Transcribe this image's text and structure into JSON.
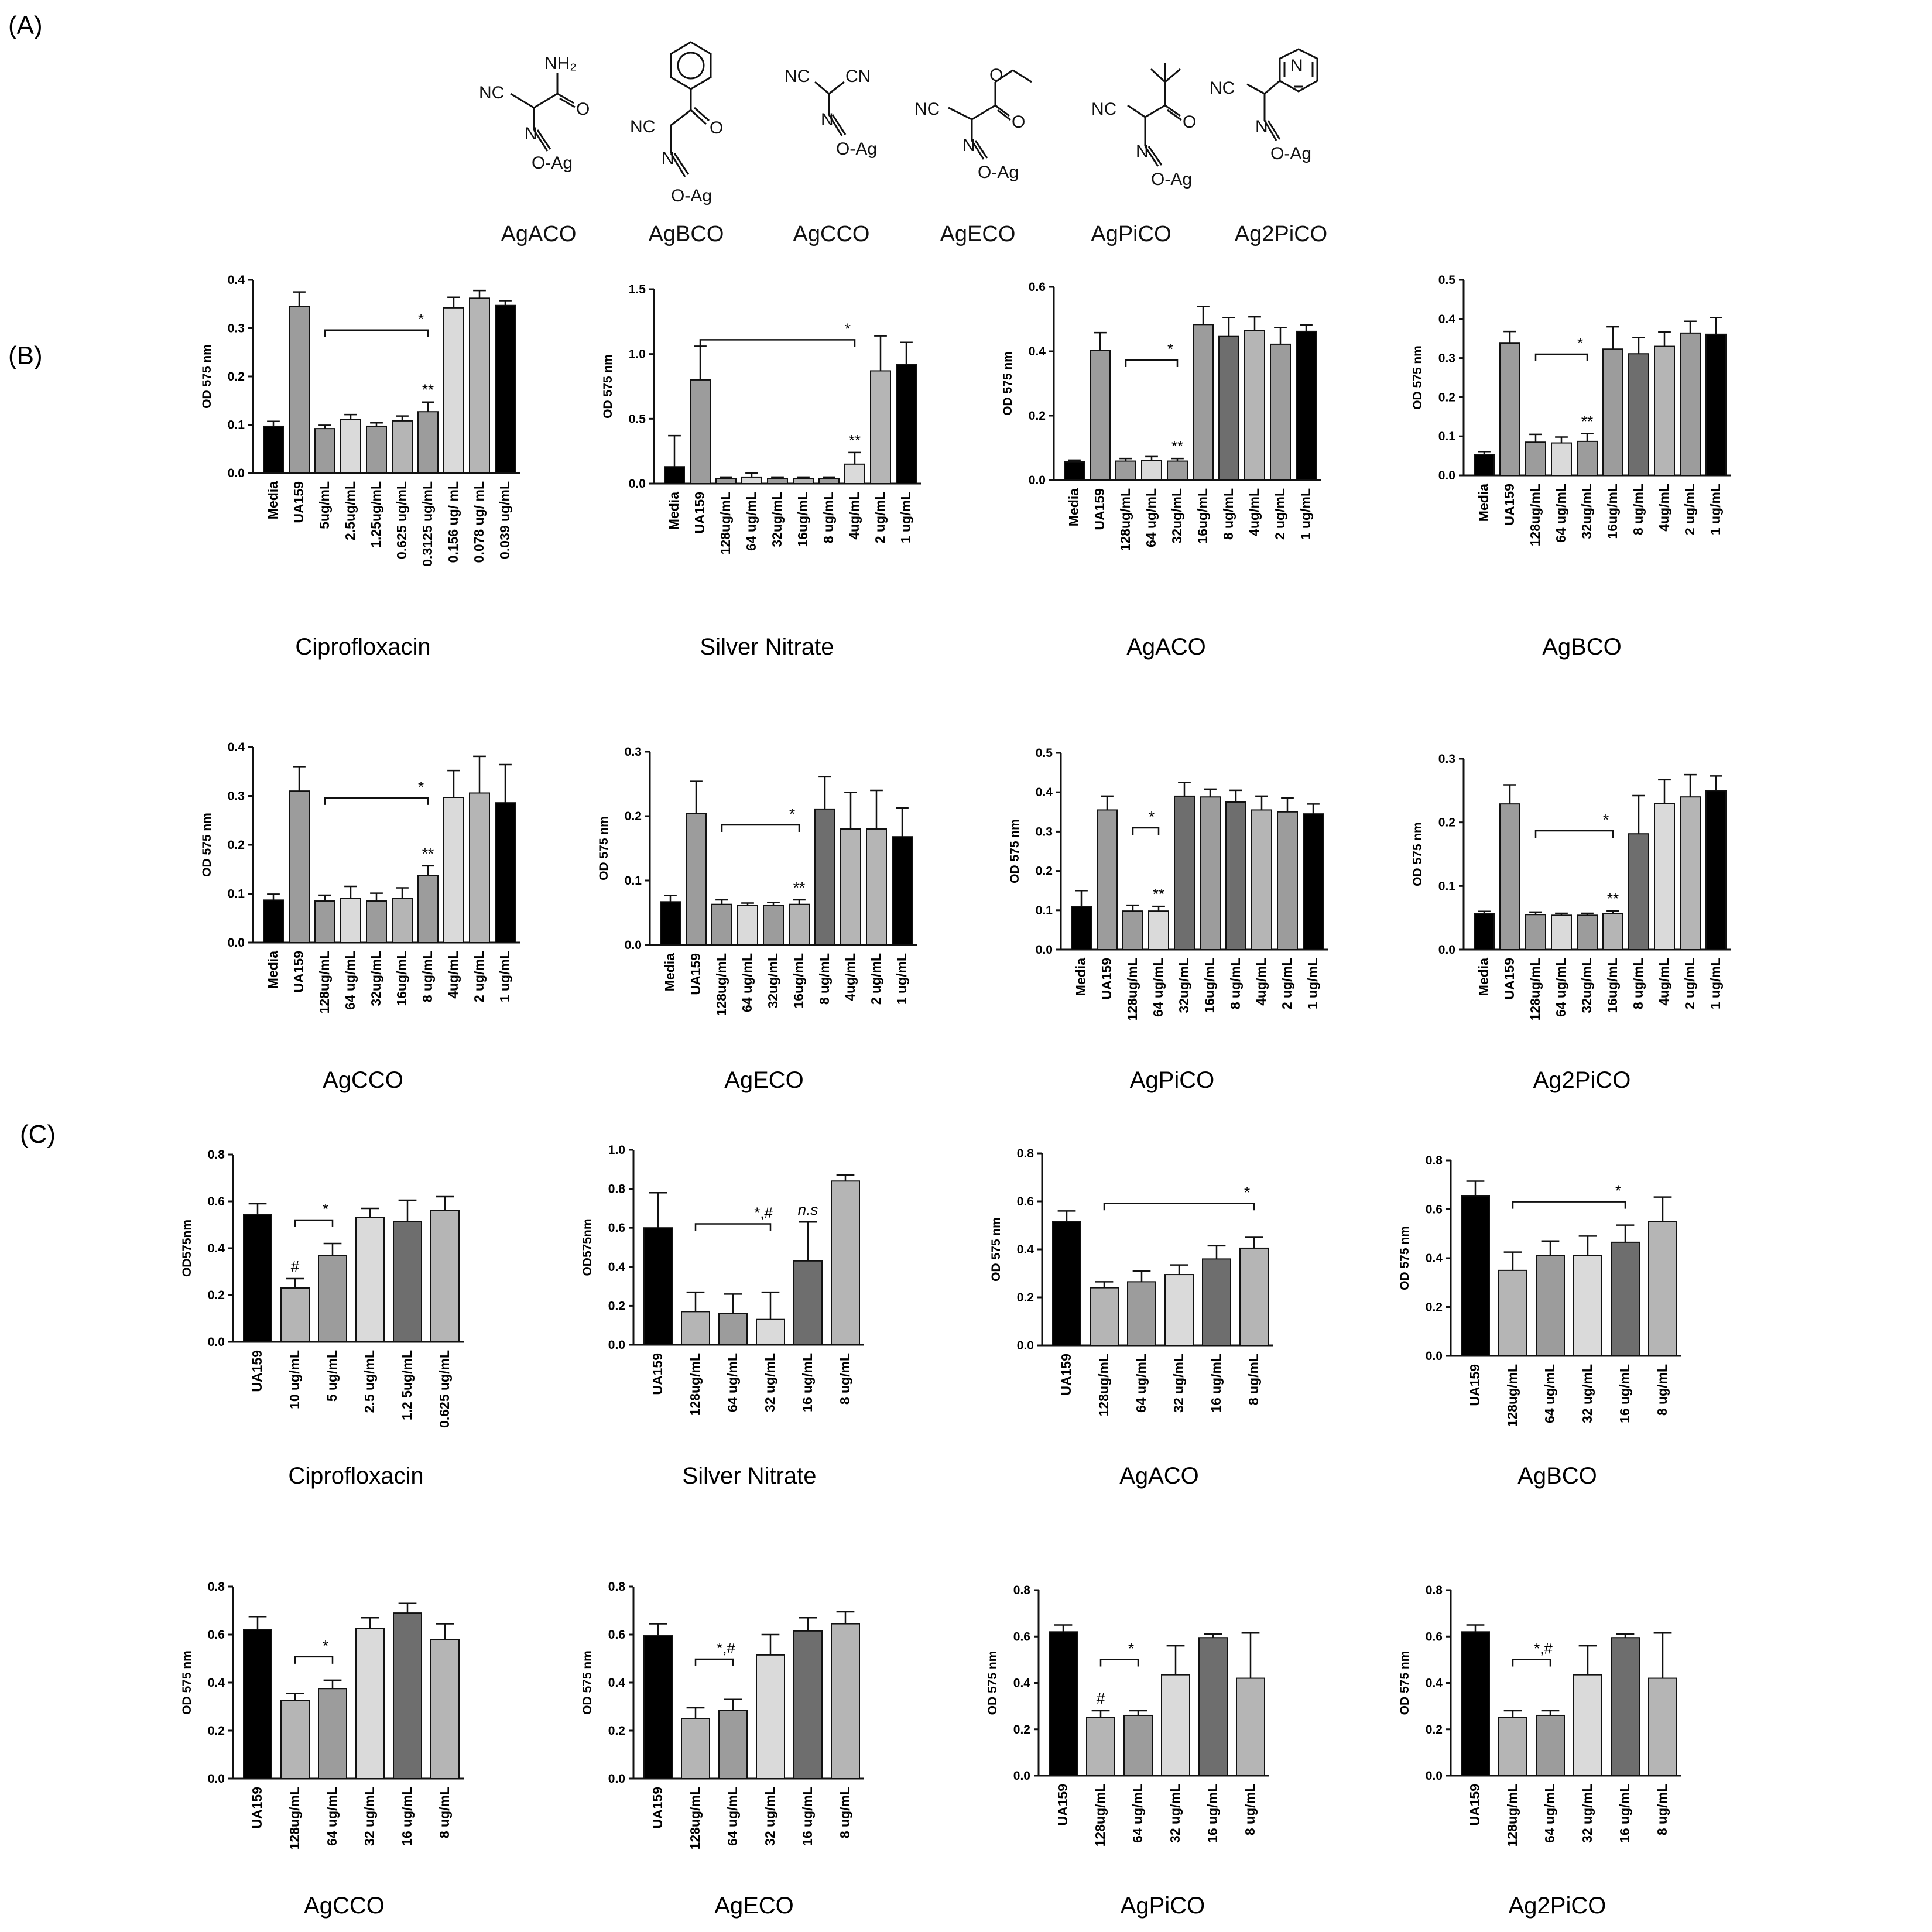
{
  "panel_labels": {
    "a": "(A)",
    "b": "(B)",
    "c": "(C)"
  },
  "structures": [
    {
      "name": "AgACO",
      "group_label": "NH₂"
    },
    {
      "name": "AgBCO"
    },
    {
      "name": "AgCCO"
    },
    {
      "name": "AgECO"
    },
    {
      "name": "AgPiCO"
    },
    {
      "name": "Ag2PiCO"
    }
  ],
  "structure_text": {
    "nc": "NC",
    "cn": "CN",
    "o": "O",
    "n": "N",
    "oag": "O-Ag",
    "ag": "Ag"
  },
  "colors": {
    "black": "#000000",
    "dark": "#6e6e6e",
    "mid": "#9c9c9c",
    "light": "#b5b5b5",
    "pale": "#dadada",
    "palest": "#eeeeee"
  },
  "chart_data": [
    {
      "type": "bar",
      "panel": "B",
      "title": "Ciprofloxacin",
      "ylabel": "OD 575 nm",
      "ylim": [
        0,
        0.4
      ],
      "yticks": [
        "0.0",
        "0.1",
        "0.2",
        "0.3",
        "0.4"
      ],
      "categories": [
        "Media",
        "UA159",
        "5ug/mL",
        "2.5ug/mL",
        "1.25ug/mL",
        "0.625 ug/mL",
        "0.3125 ug/mL",
        "0.156 ug/ mL",
        "0.078 ug/ mL",
        "0.039 ug/mL"
      ],
      "values": [
        0.097,
        0.345,
        0.092,
        0.111,
        0.097,
        0.108,
        0.127,
        0.342,
        0.362,
        0.347
      ],
      "errors": [
        0.01,
        0.03,
        0.007,
        0.01,
        0.007,
        0.01,
        0.02,
        0.022,
        0.016,
        0.01
      ],
      "fills": [
        "black",
        "mid",
        "mid",
        "pale",
        "mid",
        "light",
        "mid",
        "pale",
        "light",
        "black"
      ],
      "bracket": {
        "from": 2,
        "to": 6,
        "label": "*"
      },
      "marks": [
        {
          "index": 6,
          "label": "**"
        }
      ]
    },
    {
      "type": "bar",
      "panel": "B",
      "title": "Silver Nitrate",
      "ylabel": "OD 575 nm",
      "ylim": [
        0,
        1.5
      ],
      "yticks": [
        "0.0",
        "0.5",
        "1.0",
        "1.5"
      ],
      "categories": [
        "Media",
        "UA159",
        "128ug/mL",
        "64 ug/mL",
        "32ug/mL",
        "16ug/mL",
        "8 ug/mL",
        "4ug/mL",
        "2 ug/mL",
        "1 ug/mL"
      ],
      "values": [
        0.13,
        0.8,
        0.04,
        0.05,
        0.04,
        0.04,
        0.04,
        0.15,
        0.87,
        0.92
      ],
      "errors": [
        0.24,
        0.26,
        0.01,
        0.03,
        0.01,
        0.01,
        0.01,
        0.09,
        0.27,
        0.17
      ],
      "fills": [
        "black",
        "mid",
        "mid",
        "pale",
        "mid",
        "light",
        "mid",
        "pale",
        "light",
        "black"
      ],
      "bracket": {
        "from": 1,
        "to": 7,
        "label": "*"
      },
      "marks": [
        {
          "index": 7,
          "label": "**"
        }
      ]
    },
    {
      "type": "bar",
      "panel": "B",
      "title": "AgACO",
      "ylabel": "OD 575 nm",
      "ylim": [
        0,
        0.6
      ],
      "yticks": [
        "0.0",
        "0.2",
        "0.4",
        "0.6"
      ],
      "categories": [
        "Media",
        "UA159",
        "128ug/mL",
        "64 ug/mL",
        "32ug/mL",
        "16ug/mL",
        "8 ug/mL",
        "4ug/mL",
        "2 ug/mL",
        "1 ug/mL"
      ],
      "values": [
        0.057,
        0.403,
        0.059,
        0.061,
        0.059,
        0.483,
        0.446,
        0.465,
        0.422,
        0.462
      ],
      "errors": [
        0.005,
        0.055,
        0.008,
        0.012,
        0.008,
        0.056,
        0.058,
        0.042,
        0.052,
        0.02
      ],
      "fills": [
        "black",
        "mid",
        "mid",
        "pale",
        "mid",
        "mid",
        "dark",
        "light",
        "mid",
        "black"
      ],
      "bracket": {
        "from": 2,
        "to": 4,
        "label": "*"
      },
      "marks": [
        {
          "index": 4,
          "label": "**"
        }
      ]
    },
    {
      "type": "bar",
      "panel": "B",
      "title": "AgBCO",
      "ylabel": "OD 575 nm",
      "ylim": [
        0,
        0.5
      ],
      "yticks": [
        "0.0",
        "0.1",
        "0.2",
        "0.3",
        "0.4",
        "0.5"
      ],
      "categories": [
        "Media",
        "UA159",
        "128ug/mL",
        "64 ug/mL",
        "32ug/mL",
        "16ug/mL",
        "8 ug/mL",
        "4ug/mL",
        "2 ug/mL",
        "1 ug/mL"
      ],
      "values": [
        0.053,
        0.338,
        0.085,
        0.083,
        0.087,
        0.323,
        0.311,
        0.33,
        0.364,
        0.361
      ],
      "errors": [
        0.008,
        0.03,
        0.02,
        0.015,
        0.02,
        0.057,
        0.042,
        0.037,
        0.03,
        0.042
      ],
      "fills": [
        "black",
        "mid",
        "mid",
        "pale",
        "mid",
        "mid",
        "dark",
        "light",
        "mid",
        "black"
      ],
      "bracket": {
        "from": 2,
        "to": 4,
        "label": "*"
      },
      "marks": [
        {
          "index": 4,
          "label": "**"
        }
      ]
    },
    {
      "type": "bar",
      "panel": "B",
      "title": "AgCCO",
      "ylabel": "OD 575 nm",
      "ylim": [
        0,
        0.4
      ],
      "yticks": [
        "0.0",
        "0.1",
        "0.2",
        "0.3",
        "0.4"
      ],
      "categories": [
        "Media",
        "UA159",
        "128ug/mL",
        "64 ug/mL",
        "32ug/mL",
        "16ug/mL",
        "8 ug/mL",
        "4ug/mL",
        "2 ug/mL",
        "1 ug/mL"
      ],
      "values": [
        0.087,
        0.31,
        0.085,
        0.09,
        0.085,
        0.09,
        0.137,
        0.297,
        0.306,
        0.286
      ],
      "errors": [
        0.012,
        0.05,
        0.012,
        0.025,
        0.016,
        0.022,
        0.02,
        0.055,
        0.075,
        0.078
      ],
      "fills": [
        "black",
        "mid",
        "mid",
        "pale",
        "mid",
        "light",
        "mid",
        "pale",
        "light",
        "black"
      ],
      "bracket": {
        "from": 2,
        "to": 6,
        "label": "*"
      },
      "marks": [
        {
          "index": 6,
          "label": "**"
        }
      ]
    },
    {
      "type": "bar",
      "panel": "B",
      "title": "AgECO",
      "ylabel": "OD 575 nm",
      "ylim": [
        0,
        0.3
      ],
      "yticks": [
        "0.0",
        "0.1",
        "0.2",
        "0.3"
      ],
      "categories": [
        "Media",
        "UA159",
        "128ug/mL",
        "64 ug/mL",
        "32ug/mL",
        "16ug/mL",
        "8 ug/mL",
        "4ug/mL",
        "2 ug/mL",
        "1 ug/mL"
      ],
      "values": [
        0.067,
        0.204,
        0.063,
        0.061,
        0.061,
        0.063,
        0.211,
        0.18,
        0.18,
        0.168
      ],
      "errors": [
        0.01,
        0.05,
        0.007,
        0.004,
        0.005,
        0.007,
        0.05,
        0.057,
        0.06,
        0.045
      ],
      "fills": [
        "black",
        "mid",
        "mid",
        "pale",
        "mid",
        "light",
        "dark",
        "light",
        "light",
        "black"
      ],
      "bracket": {
        "from": 2,
        "to": 5,
        "label": "*"
      },
      "marks": [
        {
          "index": 5,
          "label": "**"
        }
      ]
    },
    {
      "type": "bar",
      "panel": "B",
      "title": "AgPiCO",
      "ylabel": "OD 575 nm",
      "ylim": [
        0,
        0.5
      ],
      "yticks": [
        "0.0",
        "0.1",
        "0.2",
        "0.3",
        "0.4",
        "0.5"
      ],
      "categories": [
        "Media",
        "UA159",
        "128ug/mL",
        "64 ug/mL",
        "32ug/mL",
        "16ug/mL",
        "8 ug/mL",
        "4ug/mL",
        "2 ug/mL",
        "1 ug/mL"
      ],
      "values": [
        0.11,
        0.355,
        0.098,
        0.098,
        0.39,
        0.388,
        0.375,
        0.355,
        0.35,
        0.345
      ],
      "errors": [
        0.04,
        0.035,
        0.015,
        0.012,
        0.035,
        0.02,
        0.03,
        0.035,
        0.035,
        0.025
      ],
      "fills": [
        "black",
        "mid",
        "mid",
        "pale",
        "dark",
        "mid",
        "dark",
        "light",
        "mid",
        "black"
      ],
      "bracket": {
        "from": 2,
        "to": 3,
        "label": "*"
      },
      "marks": [
        {
          "index": 3,
          "label": "**"
        }
      ]
    },
    {
      "type": "bar",
      "panel": "B",
      "title": "Ag2PiCO",
      "ylabel": "OD 575 nm",
      "ylim": [
        0,
        0.3
      ],
      "yticks": [
        "0.0",
        "0.1",
        "0.2",
        "0.3"
      ],
      "categories": [
        "Media",
        "UA159",
        "128ug/mL",
        "64 ug/mL",
        "32ug/mL",
        "16ug/mL",
        "8 ug/mL",
        "4ug/mL",
        "2 ug/mL",
        "1 ug/mL"
      ],
      "values": [
        0.057,
        0.229,
        0.055,
        0.054,
        0.054,
        0.057,
        0.182,
        0.23,
        0.24,
        0.25
      ],
      "errors": [
        0.003,
        0.03,
        0.004,
        0.003,
        0.003,
        0.004,
        0.06,
        0.037,
        0.035,
        0.023
      ],
      "fills": [
        "black",
        "mid",
        "mid",
        "pale",
        "mid",
        "light",
        "dark",
        "pale",
        "light",
        "black"
      ],
      "bracket": {
        "from": 2,
        "to": 5,
        "label": "*"
      },
      "marks": [
        {
          "index": 5,
          "label": "**"
        }
      ]
    },
    {
      "type": "bar",
      "panel": "C",
      "title": "Ciprofloxacin",
      "ylabel": "OD575nm",
      "ylim": [
        0,
        0.8
      ],
      "yticks": [
        "0.0",
        "0.2",
        "0.4",
        "0.6",
        "0.8"
      ],
      "categories": [
        "UA159",
        "10 ug/mL",
        "5  ug/mL",
        "2.5  ug/mL",
        "1.2 5ug/mL",
        "0.625 ug/mL"
      ],
      "values": [
        0.545,
        0.23,
        0.37,
        0.53,
        0.515,
        0.56
      ],
      "errors": [
        0.045,
        0.04,
        0.05,
        0.04,
        0.09,
        0.06
      ],
      "fills": [
        "black",
        "light",
        "mid",
        "pale",
        "dark",
        "light"
      ],
      "bracket": {
        "from": 1,
        "to": 2,
        "label": "*"
      },
      "marks": [
        {
          "index": 1,
          "label": "#"
        }
      ]
    },
    {
      "type": "bar",
      "panel": "C",
      "title": "Silver Nitrate",
      "ylabel": "OD575nm",
      "ylim": [
        0,
        1.0
      ],
      "yticks": [
        "0.0",
        "0.2",
        "0.4",
        "0.6",
        "0.8",
        "1.0"
      ],
      "categories": [
        "UA159",
        "128ug/mL",
        "64 ug/mL",
        "32 ug/mL",
        "16 ug/mL",
        "8 ug/mL"
      ],
      "values": [
        0.6,
        0.17,
        0.16,
        0.13,
        0.43,
        0.84
      ],
      "errors": [
        0.18,
        0.1,
        0.1,
        0.14,
        0.2,
        0.03
      ],
      "fills": [
        "black",
        "light",
        "mid",
        "pale",
        "dark",
        "light"
      ],
      "bracket": {
        "from": 1,
        "to": 3,
        "label": "*,#"
      },
      "marks": [
        {
          "index": 4,
          "label": "n.s",
          "italic": true
        }
      ]
    },
    {
      "type": "bar",
      "panel": "C",
      "title": "AgACO",
      "ylabel": "OD 575 nm",
      "ylim": [
        0,
        0.8
      ],
      "yticks": [
        "0.0",
        "0.2",
        "0.4",
        "0.6",
        "0.8"
      ],
      "categories": [
        "UA159",
        "128ug/mL",
        "64 ug/mL",
        "32 ug/mL",
        "16 ug/mL",
        "8 ug/mL"
      ],
      "values": [
        0.515,
        0.24,
        0.265,
        0.295,
        0.36,
        0.405
      ],
      "errors": [
        0.045,
        0.025,
        0.045,
        0.04,
        0.055,
        0.045
      ],
      "fills": [
        "black",
        "light",
        "mid",
        "pale",
        "dark",
        "light"
      ],
      "bracket": {
        "from": 1,
        "to": 5,
        "label": "*"
      },
      "marks": []
    },
    {
      "type": "bar",
      "panel": "C",
      "title": "AgBCO",
      "ylabel": "OD 575 nm",
      "ylim": [
        0,
        0.8
      ],
      "yticks": [
        "0.0",
        "0.2",
        "0.4",
        "0.6",
        "0.8"
      ],
      "categories": [
        "UA159",
        "128ug/mL",
        "64 ug/mL",
        "32 ug/mL",
        "16 ug/mL",
        "8 ug/mL"
      ],
      "values": [
        0.655,
        0.35,
        0.41,
        0.41,
        0.465,
        0.55
      ],
      "errors": [
        0.06,
        0.075,
        0.06,
        0.08,
        0.07,
        0.1
      ],
      "fills": [
        "black",
        "light",
        "mid",
        "pale",
        "dark",
        "light"
      ],
      "bracket": {
        "from": 1,
        "to": 4,
        "label": "*"
      },
      "marks": []
    },
    {
      "type": "bar",
      "panel": "C",
      "title": "AgCCO",
      "ylabel": "OD 575 nm",
      "ylim": [
        0,
        0.8
      ],
      "yticks": [
        "0.0",
        "0.2",
        "0.4",
        "0.6",
        "0.8"
      ],
      "categories": [
        "UA159",
        "128ug/mL",
        "64 ug/mL",
        "32 ug/mL",
        "16 ug/mL",
        "8 ug/mL"
      ],
      "values": [
        0.62,
        0.325,
        0.375,
        0.625,
        0.69,
        0.58
      ],
      "errors": [
        0.055,
        0.03,
        0.035,
        0.045,
        0.04,
        0.065
      ],
      "fills": [
        "black",
        "light",
        "mid",
        "pale",
        "dark",
        "light"
      ],
      "bracket": {
        "from": 1,
        "to": 2,
        "label": "*"
      },
      "marks": []
    },
    {
      "type": "bar",
      "panel": "C",
      "title": "AgECO",
      "ylabel": "OD 575 nm",
      "ylim": [
        0,
        0.8
      ],
      "yticks": [
        "0.0",
        "0.2",
        "0.4",
        "0.6",
        "0.8"
      ],
      "categories": [
        "UA159",
        "128ug/mL",
        "64 ug/mL",
        "32 ug/mL",
        "16 ug/mL",
        "8 ug/mL"
      ],
      "values": [
        0.595,
        0.25,
        0.285,
        0.515,
        0.615,
        0.645
      ],
      "errors": [
        0.05,
        0.045,
        0.045,
        0.085,
        0.055,
        0.05
      ],
      "fills": [
        "black",
        "light",
        "mid",
        "pale",
        "dark",
        "light"
      ],
      "bracket": {
        "from": 1,
        "to": 2,
        "label": "*,#"
      },
      "marks": []
    },
    {
      "type": "bar",
      "panel": "C",
      "title": "AgPiCO",
      "ylabel": "OD 575 nm",
      "ylim": [
        0,
        0.8
      ],
      "yticks": [
        "0.0",
        "0.2",
        "0.4",
        "0.6",
        "0.8"
      ],
      "categories": [
        "UA159",
        "128ug/mL",
        "64 ug/mL",
        "32 ug/mL",
        "16 ug/mL",
        "8 ug/mL"
      ],
      "values": [
        0.62,
        0.25,
        0.26,
        0.435,
        0.595,
        0.42
      ],
      "errors": [
        0.03,
        0.03,
        0.02,
        0.125,
        0.015,
        0.195
      ],
      "fills": [
        "black",
        "light",
        "mid",
        "pale",
        "dark",
        "light"
      ],
      "bracket": {
        "from": 1,
        "to": 2,
        "label": "*"
      },
      "marks": [
        {
          "index": 1,
          "label": "#"
        }
      ]
    },
    {
      "type": "bar",
      "panel": "C",
      "title": "Ag2PiCO",
      "ylabel": "OD 575 nm",
      "ylim": [
        0,
        0.8
      ],
      "yticks": [
        "0.0",
        "0.2",
        "0.4",
        "0.6",
        "0.8"
      ],
      "categories": [
        "UA159",
        "128ug/mL",
        "64 ug/mL",
        "32 ug/mL",
        "16 ug/mL",
        "8 ug/mL"
      ],
      "values": [
        0.62,
        0.25,
        0.26,
        0.435,
        0.595,
        0.42
      ],
      "errors": [
        0.03,
        0.03,
        0.02,
        0.125,
        0.015,
        0.195
      ],
      "fills": [
        "black",
        "light",
        "mid",
        "pale",
        "dark",
        "light"
      ],
      "bracket": {
        "from": 1,
        "to": 2,
        "label": "*,#"
      },
      "marks": []
    }
  ]
}
